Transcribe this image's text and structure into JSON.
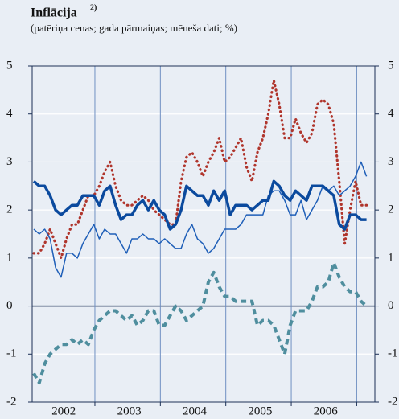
{
  "chart_data": {
    "type": "line",
    "title": "Inflācija",
    "title_note": "2)",
    "subtitle": "(patēriņa cenas; gada pārmaiņas; mēneša dati; %)",
    "categories": [
      null,
      null,
      null,
      null,
      null,
      null,
      "2002",
      null,
      null,
      null,
      null,
      null,
      null,
      null,
      null,
      null,
      null,
      null,
      "2003",
      null,
      null,
      null,
      null,
      null,
      null,
      null,
      null,
      null,
      null,
      null,
      "2004",
      null,
      null,
      null,
      null,
      null,
      null,
      null,
      null,
      null,
      null,
      null,
      "2005",
      null,
      null,
      null,
      null,
      null,
      null,
      null,
      null,
      null,
      null,
      null,
      "2006",
      null,
      null,
      null,
      null,
      null,
      null,
      null
    ],
    "ylim": [
      -2,
      5
    ],
    "yticks": [
      -2,
      -1,
      0,
      1,
      2,
      3,
      4,
      5
    ],
    "grid": true,
    "series": [
      {
        "color": "#0b4a9e",
        "style": "thick",
        "values": [
          2.6,
          2.5,
          2.5,
          2.3,
          2.0,
          1.9,
          2.0,
          2.1,
          2.1,
          2.3,
          2.3,
          2.3,
          2.1,
          2.4,
          2.5,
          2.1,
          1.8,
          1.9,
          1.9,
          2.1,
          2.2,
          2.0,
          2.2,
          2.0,
          1.9,
          1.6,
          1.7,
          2.0,
          2.5,
          2.4,
          2.3,
          2.3,
          2.1,
          2.4,
          2.2,
          2.4,
          1.9,
          2.1,
          2.1,
          2.1,
          2.0,
          2.1,
          2.2,
          2.2,
          2.6,
          2.5,
          2.3,
          2.2,
          2.4,
          2.3,
          2.2,
          2.5,
          2.5,
          2.5,
          2.4,
          2.3,
          1.7,
          1.6,
          1.9,
          1.9,
          1.8,
          1.8
        ]
      },
      {
        "color": "#1f5fb8",
        "style": "thin",
        "values": [
          1.6,
          1.5,
          1.6,
          1.4,
          0.8,
          0.6,
          1.1,
          1.1,
          1.0,
          1.3,
          1.5,
          1.7,
          1.4,
          1.6,
          1.5,
          1.5,
          1.3,
          1.1,
          1.4,
          1.4,
          1.5,
          1.4,
          1.4,
          1.3,
          1.4,
          1.3,
          1.2,
          1.2,
          1.5,
          1.7,
          1.4,
          1.3,
          1.1,
          1.2,
          1.4,
          1.6,
          1.6,
          1.6,
          1.7,
          1.9,
          1.9,
          1.9,
          1.9,
          2.3,
          2.4,
          2.4,
          2.2,
          1.9,
          1.9,
          2.2,
          1.8,
          2.0,
          2.2,
          2.5,
          2.4,
          2.5,
          2.3,
          2.4,
          2.5,
          2.7,
          3.0,
          2.7
        ]
      },
      {
        "color": "#b0352c",
        "style": "dotted",
        "values": [
          1.1,
          1.1,
          1.3,
          1.6,
          1.3,
          1.0,
          1.4,
          1.7,
          1.7,
          2.0,
          2.3,
          2.3,
          2.5,
          2.8,
          3.0,
          2.5,
          2.2,
          2.1,
          2.1,
          2.2,
          2.3,
          2.2,
          2.0,
          1.9,
          1.8,
          1.7,
          1.7,
          2.6,
          3.1,
          3.2,
          3.0,
          2.7,
          3.0,
          3.2,
          3.5,
          3.0,
          3.1,
          3.3,
          3.5,
          2.9,
          2.6,
          3.2,
          3.5,
          4.0,
          4.7,
          4.2,
          3.5,
          3.5,
          3.9,
          3.6,
          3.4,
          3.6,
          4.2,
          4.3,
          4.2,
          3.8,
          2.6,
          1.3,
          2.0,
          2.6,
          2.1,
          2.1
        ]
      },
      {
        "color": "#4f8e9e",
        "style": "dashed",
        "values": [
          -1.4,
          -1.6,
          -1.2,
          -1.0,
          -0.9,
          -0.8,
          -0.8,
          -0.7,
          -0.8,
          -0.7,
          -0.8,
          -0.5,
          -0.3,
          -0.2,
          -0.1,
          -0.1,
          -0.2,
          -0.3,
          -0.2,
          -0.4,
          -0.3,
          -0.1,
          -0.1,
          -0.4,
          -0.4,
          -0.2,
          0.0,
          -0.1,
          -0.3,
          -0.2,
          -0.1,
          0.0,
          0.5,
          0.7,
          0.4,
          0.2,
          0.2,
          0.1,
          0.1,
          0.1,
          0.1,
          -0.4,
          -0.3,
          -0.3,
          -0.4,
          -0.7,
          -1.0,
          -0.4,
          -0.1,
          -0.1,
          -0.1,
          0.1,
          0.4,
          0.4,
          0.5,
          0.9,
          0.6,
          0.4,
          0.3,
          0.3,
          0.1,
          0.0
        ]
      }
    ]
  }
}
